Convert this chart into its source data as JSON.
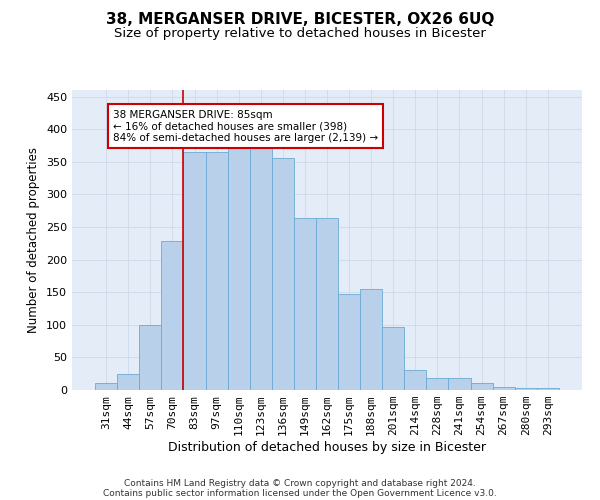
{
  "title1": "38, MERGANSER DRIVE, BICESTER, OX26 6UQ",
  "title2": "Size of property relative to detached houses in Bicester",
  "xlabel": "Distribution of detached houses by size in Bicester",
  "ylabel": "Number of detached properties",
  "categories": [
    "31sqm",
    "44sqm",
    "57sqm",
    "70sqm",
    "83sqm",
    "97sqm",
    "110sqm",
    "123sqm",
    "136sqm",
    "149sqm",
    "162sqm",
    "175sqm",
    "188sqm",
    "201sqm",
    "214sqm",
    "228sqm",
    "241sqm",
    "254sqm",
    "267sqm",
    "280sqm",
    "293sqm"
  ],
  "values": [
    10,
    25,
    100,
    228,
    365,
    365,
    372,
    372,
    355,
    263,
    263,
    147,
    155,
    97,
    30,
    19,
    19,
    10,
    4,
    3,
    3
  ],
  "bar_color": "#b8d0ea",
  "bar_edge_color": "#6aaad4",
  "vline_index": 4,
  "vline_color": "#cc0000",
  "annotation_text": "38 MERGANSER DRIVE: 85sqm\n← 16% of detached houses are smaller (398)\n84% of semi-detached houses are larger (2,139) →",
  "annotation_box_color": "#ffffff",
  "annotation_box_edge": "#cc0000",
  "grid_color": "#cdd8ea",
  "bg_color": "#e4ecf7",
  "footnote1": "Contains HM Land Registry data © Crown copyright and database right 2024.",
  "footnote2": "Contains public sector information licensed under the Open Government Licence v3.0.",
  "ylim": [
    0,
    460
  ],
  "yticks": [
    0,
    50,
    100,
    150,
    200,
    250,
    300,
    350,
    400,
    450
  ]
}
